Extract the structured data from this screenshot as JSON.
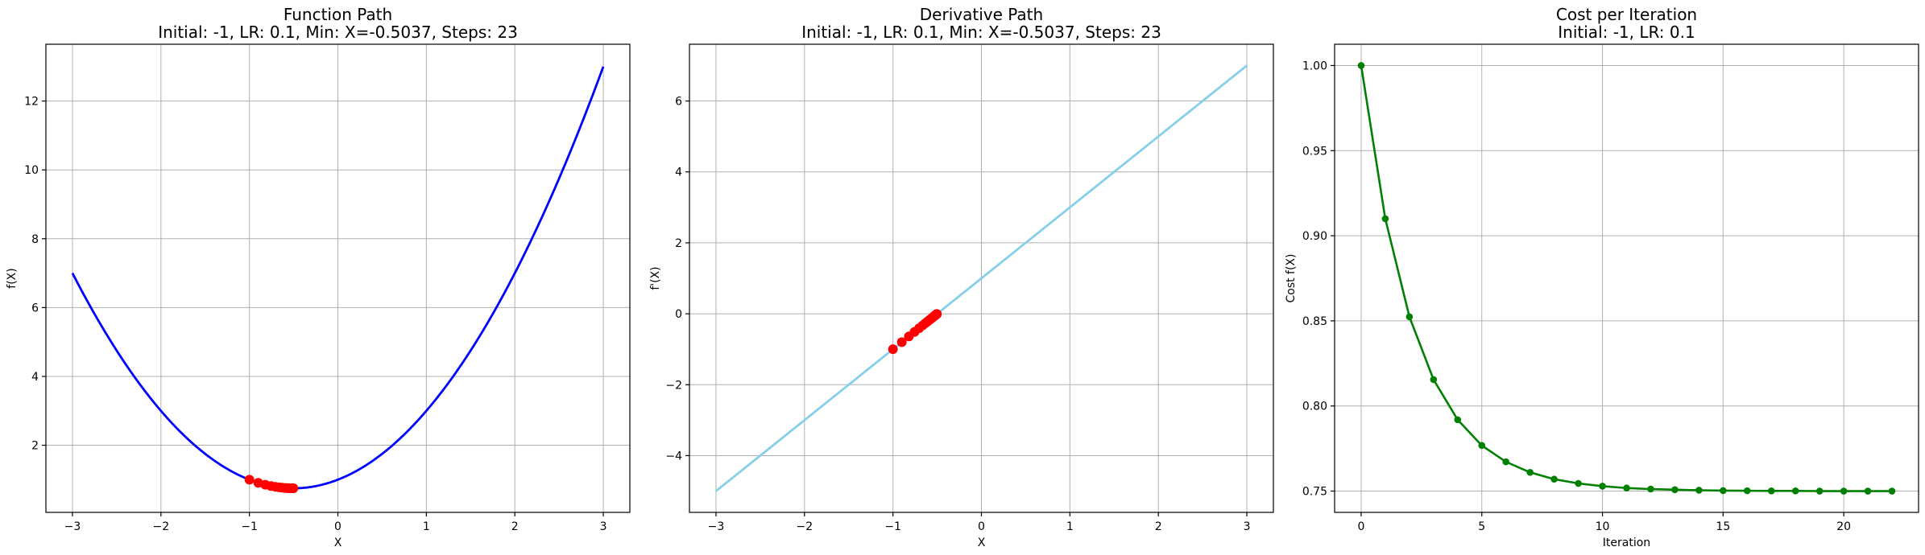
{
  "chart_data": [
    {
      "type": "line",
      "title": "Function Path",
      "subtitle": "Initial: -1, LR: 0.1, Min: X=-0.5037, Steps: 23",
      "xlabel": "X",
      "ylabel": "f(X)",
      "xlim": [
        -3.3,
        3.3
      ],
      "ylim": [
        0.05,
        13.65
      ],
      "xticks": [
        -3,
        -2,
        -1,
        0,
        1,
        2,
        3
      ],
      "yticks": [
        2,
        4,
        6,
        8,
        10,
        12
      ],
      "grid": true,
      "series": [
        {
          "kind": "curve",
          "color": "#0000ff",
          "function": "x^2 + x + 1",
          "x_range": [
            -3,
            3
          ]
        },
        {
          "kind": "points",
          "color": "#ff0000",
          "x": [
            -1.0,
            -0.9,
            -0.82,
            -0.756,
            -0.7048,
            -0.6638,
            -0.6311,
            -0.6049,
            -0.5839,
            -0.5671,
            -0.5537,
            -0.5429,
            -0.5344,
            -0.5275,
            -0.522,
            -0.5176,
            -0.5141,
            -0.5113,
            -0.509,
            -0.5072,
            -0.5058,
            -0.5046,
            -0.5037
          ],
          "y": [
            1.0,
            0.91,
            0.8524,
            0.8155,
            0.7919,
            0.7768,
            0.7672,
            0.761,
            0.757,
            0.7545,
            0.7529,
            0.7518,
            0.7512,
            0.7508,
            0.7505,
            0.7503,
            0.7502,
            0.7501,
            0.7501,
            0.75,
            0.75,
            0.75,
            0.75
          ]
        }
      ]
    },
    {
      "type": "line",
      "title": "Derivative Path",
      "subtitle": "Initial: -1, LR: 0.1, Min: X=-0.5037, Steps: 23",
      "xlabel": "X",
      "ylabel": "f'(X)",
      "xlim": [
        -3.3,
        3.3
      ],
      "ylim": [
        -5.6,
        7.6
      ],
      "xticks": [
        -3,
        -2,
        -1,
        0,
        1,
        2,
        3
      ],
      "yticks": [
        -4,
        -2,
        0,
        2,
        4,
        6
      ],
      "grid": true,
      "series": [
        {
          "kind": "curve",
          "color": "#87ceeb",
          "function": "2x + 1",
          "x_range": [
            -3,
            3
          ]
        },
        {
          "kind": "points",
          "color": "#ff0000",
          "x": [
            -1.0,
            -0.9,
            -0.82,
            -0.756,
            -0.7048,
            -0.6638,
            -0.6311,
            -0.6049,
            -0.5839,
            -0.5671,
            -0.5537,
            -0.5429,
            -0.5344,
            -0.5275,
            -0.522,
            -0.5176,
            -0.5141,
            -0.5113,
            -0.509,
            -0.5072,
            -0.5058,
            -0.5046,
            -0.5037
          ],
          "y": [
            -1.0,
            -0.8,
            -0.64,
            -0.512,
            -0.4096,
            -0.3277,
            -0.2621,
            -0.2097,
            -0.1678,
            -0.1342,
            -0.1074,
            -0.0859,
            -0.0687,
            -0.055,
            -0.044,
            -0.0352,
            -0.0281,
            -0.0225,
            -0.018,
            -0.0144,
            -0.0115,
            -0.0092,
            -0.0074
          ]
        }
      ]
    },
    {
      "type": "line",
      "title": "Cost per Iteration",
      "subtitle": "Initial: -1, LR: 0.1",
      "xlabel": "Iteration",
      "ylabel": "Cost f(X)",
      "xlim": [
        -1.1,
        23.1
      ],
      "ylim": [
        0.7375,
        1.0125
      ],
      "xticks": [
        0,
        5,
        10,
        15,
        20
      ],
      "yticks": [
        0.75,
        0.8,
        0.85,
        0.9,
        0.95,
        1.0
      ],
      "ytick_labels": [
        "0.75",
        "0.80",
        "0.85",
        "0.90",
        "0.95",
        "1.00"
      ],
      "grid": true,
      "series": [
        {
          "kind": "line-markers",
          "color": "#008000",
          "x": [
            0,
            1,
            2,
            3,
            4,
            5,
            6,
            7,
            8,
            9,
            10,
            11,
            12,
            13,
            14,
            15,
            16,
            17,
            18,
            19,
            20,
            21,
            22
          ],
          "y": [
            1.0,
            0.91,
            0.8524,
            0.8155,
            0.7919,
            0.7768,
            0.7672,
            0.761,
            0.757,
            0.7545,
            0.7529,
            0.7518,
            0.7512,
            0.7508,
            0.7505,
            0.7503,
            0.7502,
            0.7501,
            0.7501,
            0.75,
            0.75,
            0.75,
            0.75
          ]
        }
      ]
    }
  ]
}
